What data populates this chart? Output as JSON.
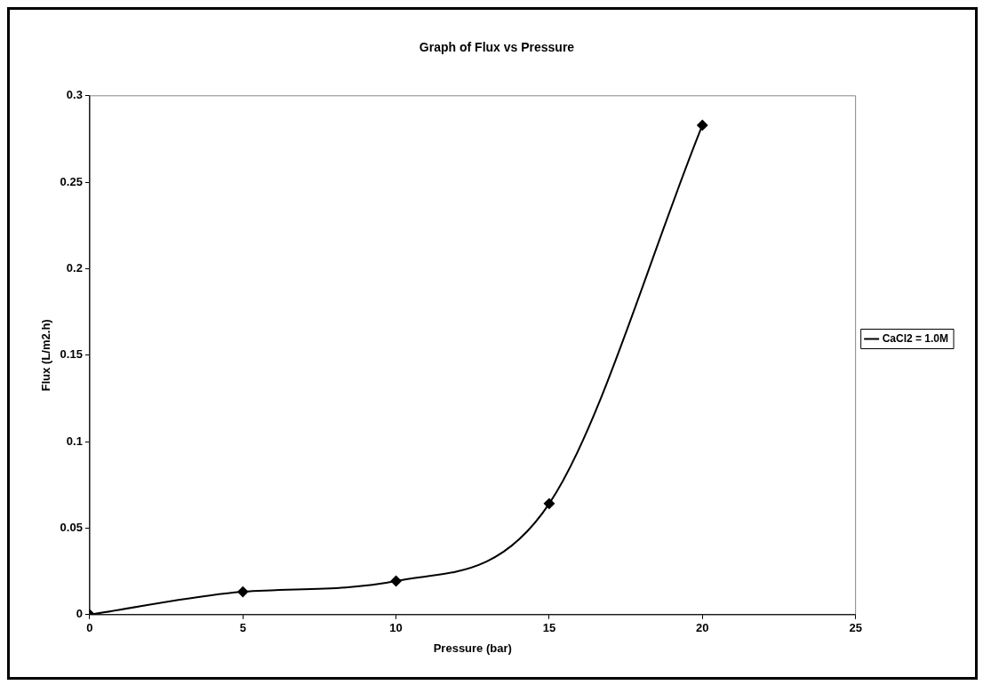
{
  "chart_data": {
    "type": "line",
    "title": "Graph of Flux vs Pressure",
    "xlabel": "Pressure (bar)",
    "ylabel": "Flux (L/m2.h)",
    "x": [
      0,
      5,
      10,
      15,
      20
    ],
    "series": [
      {
        "name": "CaCl2 = 1.0M",
        "color": "#000000",
        "values": [
          0,
          0.0132,
          0.0194,
          0.0642,
          0.283
        ]
      }
    ],
    "xlim": [
      0,
      25
    ],
    "xticks": [
      0,
      5,
      10,
      15,
      20,
      25
    ],
    "ylim": [
      0,
      0.3
    ],
    "yticks": [
      0,
      0.05,
      0.1,
      0.15,
      0.2,
      0.25,
      0.3
    ],
    "grid": false,
    "legend": "right",
    "marker": "diamond",
    "line_style": "solid"
  }
}
